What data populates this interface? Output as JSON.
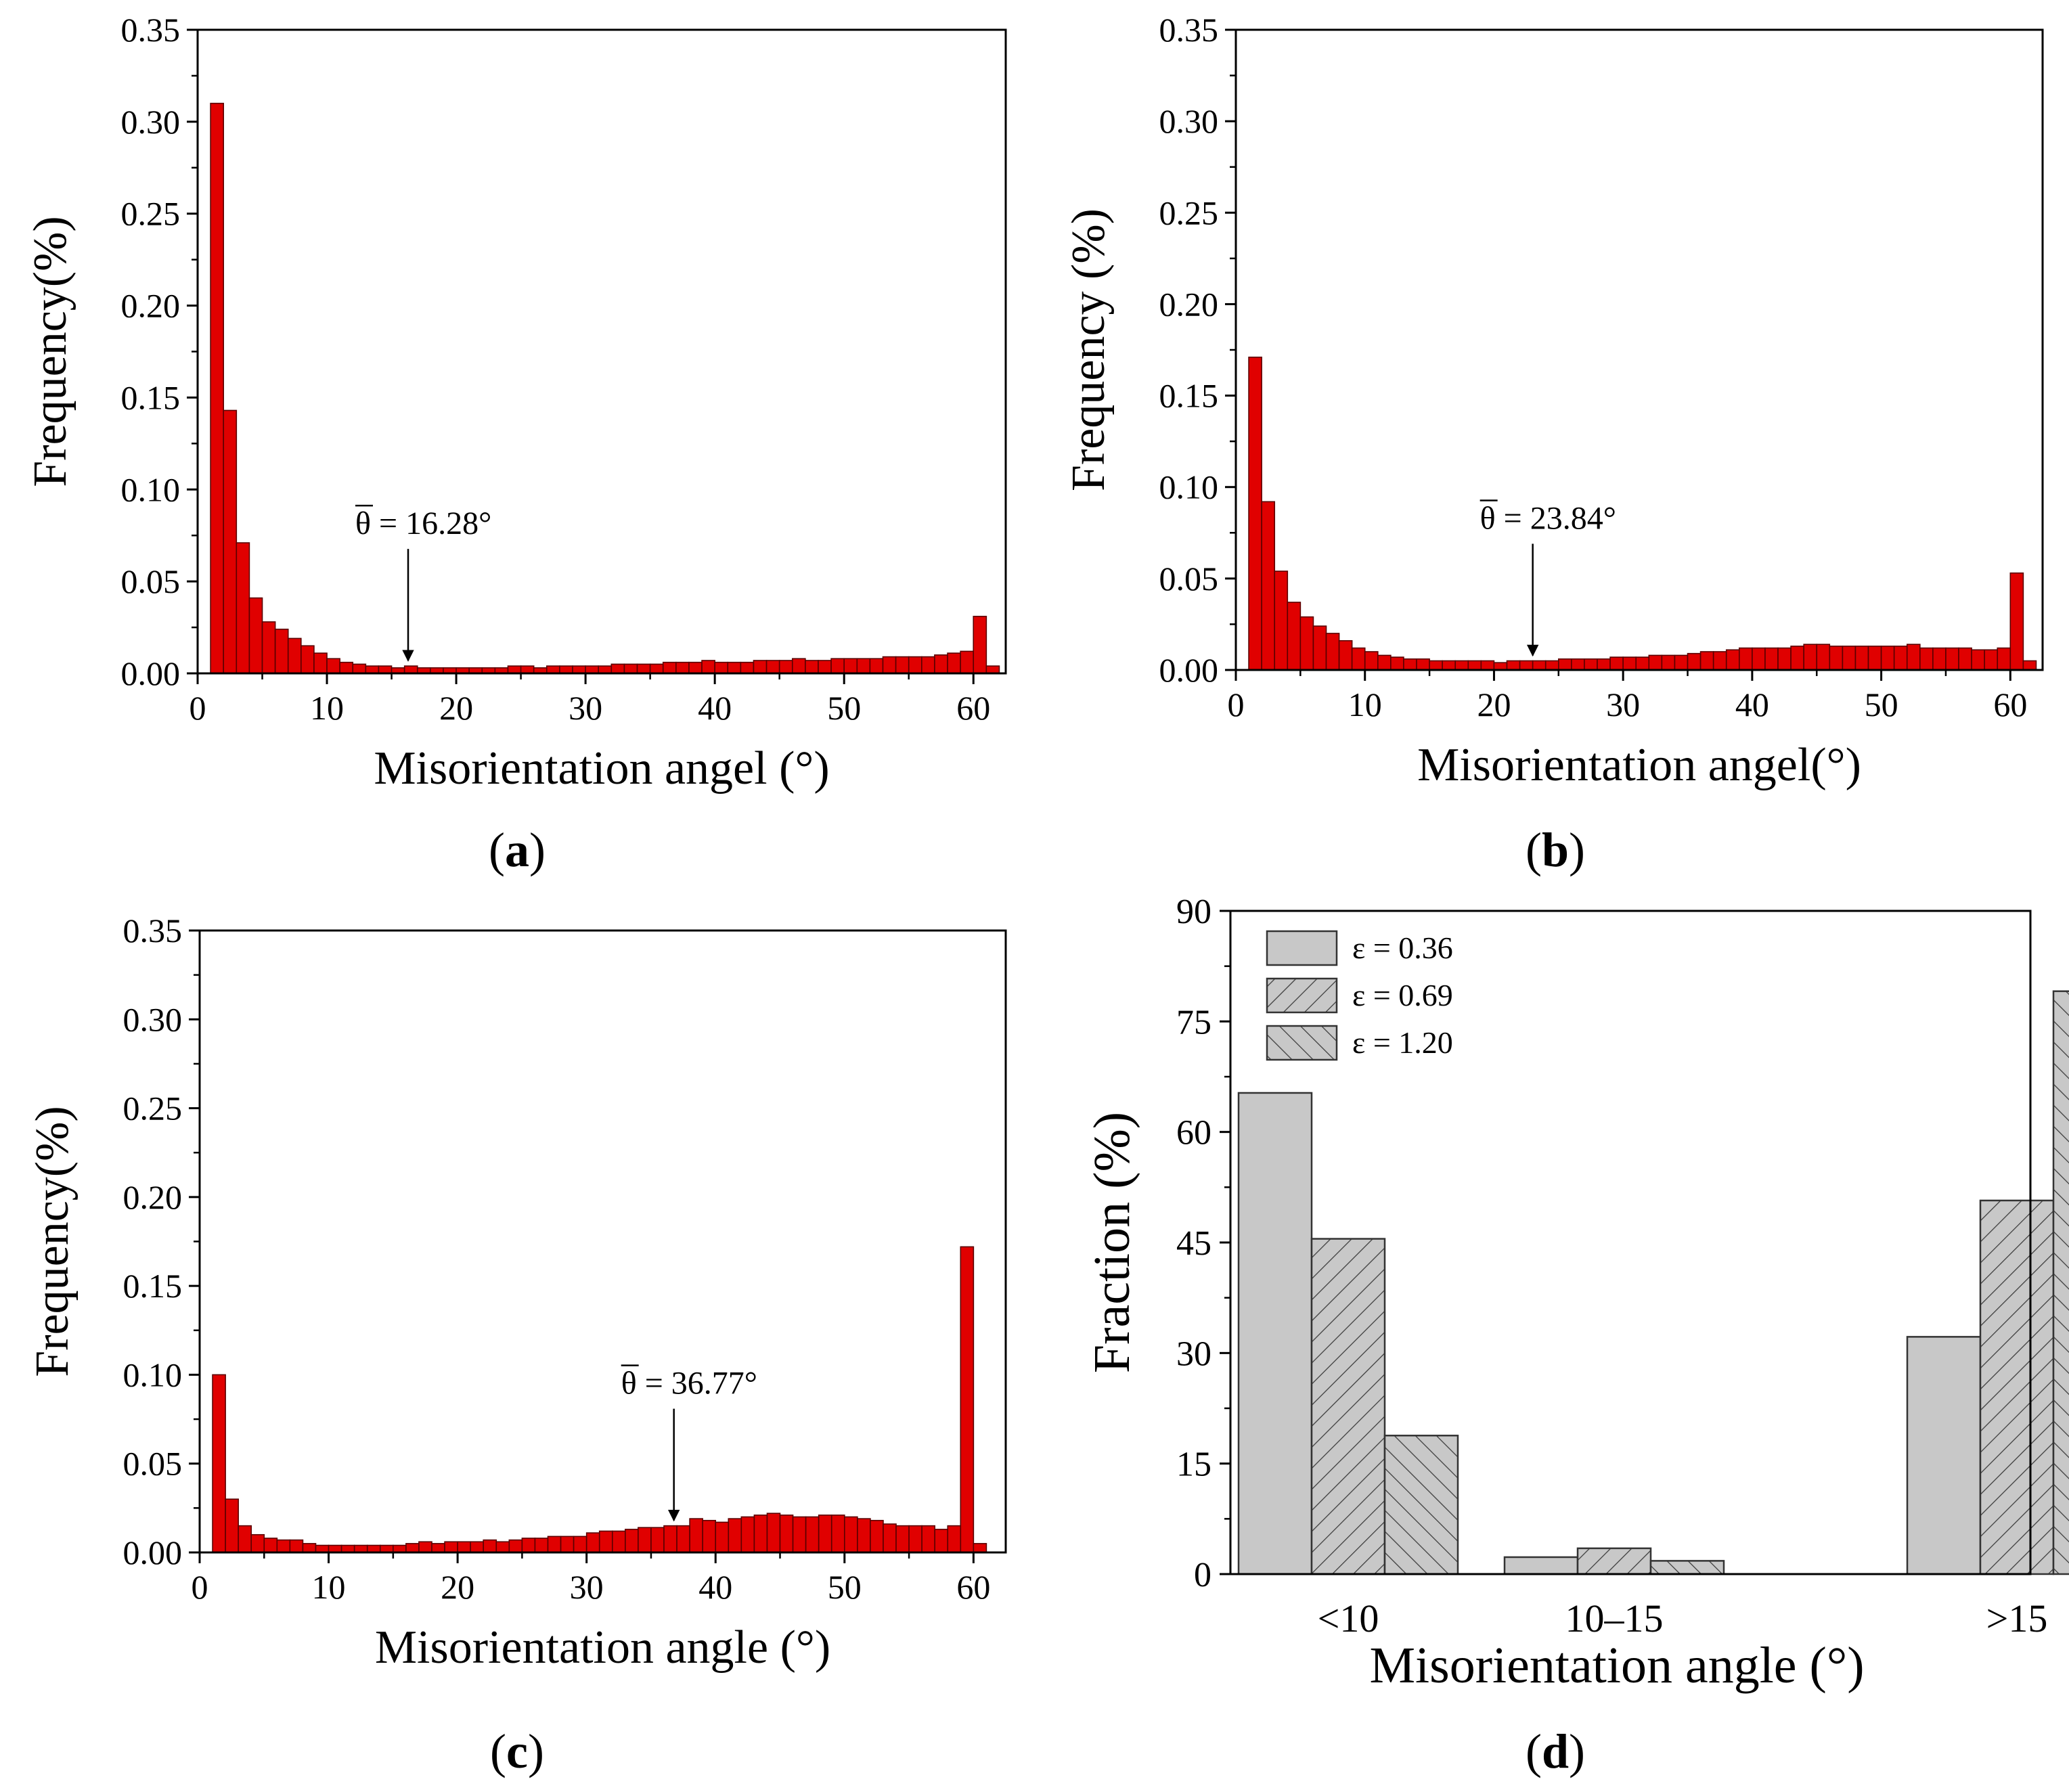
{
  "colors": {
    "bar_red": "#e00000",
    "bar_gray": "#c8c8c8",
    "axis": "#000000"
  },
  "chart_data": [
    {
      "panel": "a",
      "type": "bar",
      "panel_label": "(a)",
      "panel_label_parts": [
        "(",
        "a",
        ")"
      ],
      "xlabel": "Misorientation angel (°)",
      "ylabel": "Frequency(%)",
      "xlim": [
        0,
        62.5
      ],
      "ylim": [
        0,
        0.35
      ],
      "xticks": [
        0,
        10,
        20,
        30,
        40,
        50,
        60
      ],
      "yticks": [
        0.0,
        0.05,
        0.1,
        0.15,
        0.2,
        0.25,
        0.3,
        0.35
      ],
      "bin_width": 1,
      "x": [
        1,
        2,
        3,
        4,
        5,
        6,
        7,
        8,
        9,
        10,
        11,
        12,
        13,
        14,
        15,
        16,
        17,
        18,
        19,
        20,
        21,
        22,
        23,
        24,
        25,
        26,
        27,
        28,
        29,
        30,
        31,
        32,
        33,
        34,
        35,
        36,
        37,
        38,
        39,
        40,
        41,
        42,
        43,
        44,
        45,
        46,
        47,
        48,
        49,
        50,
        51,
        52,
        53,
        54,
        55,
        56,
        57,
        58,
        59,
        60
      ],
      "values": [
        0.31,
        0.143,
        0.071,
        0.041,
        0.028,
        0.024,
        0.019,
        0.015,
        0.011,
        0.008,
        0.006,
        0.005,
        0.004,
        0.004,
        0.003,
        0.004,
        0.003,
        0.003,
        0.003,
        0.003,
        0.003,
        0.003,
        0.003,
        0.004,
        0.004,
        0.003,
        0.004,
        0.004,
        0.004,
        0.004,
        0.004,
        0.005,
        0.005,
        0.005,
        0.005,
        0.006,
        0.006,
        0.006,
        0.007,
        0.006,
        0.006,
        0.006,
        0.007,
        0.007,
        0.007,
        0.008,
        0.007,
        0.007,
        0.008,
        0.008,
        0.008,
        0.008,
        0.009,
        0.009,
        0.009,
        0.009,
        0.01,
        0.011,
        0.012,
        0.031
      ],
      "tail_value": 0.004,
      "annotation": {
        "text": "θ = 16.28°",
        "symbol": "θ",
        "rest": " = 16.28°",
        "x": 16.28
      }
    },
    {
      "panel": "b",
      "type": "bar",
      "panel_label": "(b)",
      "panel_label_parts": [
        "(",
        "b",
        ")"
      ],
      "xlabel": "Misorientation angel(°)",
      "ylabel": "Frequency (%)",
      "xlim": [
        0,
        62.5
      ],
      "ylim": [
        0,
        0.35
      ],
      "xticks": [
        0,
        10,
        20,
        30,
        40,
        50,
        60
      ],
      "yticks": [
        0.0,
        0.05,
        0.1,
        0.15,
        0.2,
        0.25,
        0.3,
        0.35
      ],
      "bin_width": 1,
      "x": [
        1,
        2,
        3,
        4,
        5,
        6,
        7,
        8,
        9,
        10,
        11,
        12,
        13,
        14,
        15,
        16,
        17,
        18,
        19,
        20,
        21,
        22,
        23,
        24,
        25,
        26,
        27,
        28,
        29,
        30,
        31,
        32,
        33,
        34,
        35,
        36,
        37,
        38,
        39,
        40,
        41,
        42,
        43,
        44,
        45,
        46,
        47,
        48,
        49,
        50,
        51,
        52,
        53,
        54,
        55,
        56,
        57,
        58,
        59,
        60
      ],
      "values": [
        0.171,
        0.092,
        0.054,
        0.037,
        0.029,
        0.024,
        0.02,
        0.016,
        0.012,
        0.01,
        0.008,
        0.007,
        0.006,
        0.006,
        0.005,
        0.005,
        0.005,
        0.005,
        0.005,
        0.004,
        0.005,
        0.005,
        0.005,
        0.005,
        0.006,
        0.006,
        0.006,
        0.006,
        0.007,
        0.007,
        0.007,
        0.008,
        0.008,
        0.008,
        0.009,
        0.01,
        0.01,
        0.011,
        0.012,
        0.012,
        0.012,
        0.012,
        0.013,
        0.014,
        0.014,
        0.013,
        0.013,
        0.013,
        0.013,
        0.013,
        0.013,
        0.014,
        0.012,
        0.012,
        0.012,
        0.012,
        0.011,
        0.011,
        0.012,
        0.053
      ],
      "tail_value": 0.005,
      "annotation": {
        "text": "θ = 23.84°",
        "symbol": "θ",
        "rest": " = 23.84°",
        "x": 23.0
      }
    },
    {
      "panel": "c",
      "type": "bar",
      "panel_label": "(c)",
      "panel_label_parts": [
        "(",
        "c",
        ")"
      ],
      "xlabel": "Misorientation angle (°)",
      "ylabel": "Frequency(%)",
      "xlim": [
        0,
        62.5
      ],
      "ylim": [
        0,
        0.35
      ],
      "xticks": [
        0,
        10,
        20,
        30,
        40,
        50,
        60
      ],
      "yticks": [
        0.0,
        0.05,
        0.1,
        0.15,
        0.2,
        0.25,
        0.3,
        0.35
      ],
      "bin_width": 1,
      "x": [
        1,
        2,
        3,
        4,
        5,
        6,
        7,
        8,
        9,
        10,
        11,
        12,
        13,
        14,
        15,
        16,
        17,
        18,
        19,
        20,
        21,
        22,
        23,
        24,
        25,
        26,
        27,
        28,
        29,
        30,
        31,
        32,
        33,
        34,
        35,
        36,
        37,
        38,
        39,
        40,
        41,
        42,
        43,
        44,
        45,
        46,
        47,
        48,
        49,
        50,
        51,
        52,
        53,
        54,
        55,
        56,
        57,
        58,
        59,
        60
      ],
      "values": [
        0.1,
        0.03,
        0.015,
        0.01,
        0.008,
        0.007,
        0.007,
        0.005,
        0.004,
        0.004,
        0.004,
        0.004,
        0.004,
        0.004,
        0.004,
        0.005,
        0.006,
        0.005,
        0.006,
        0.006,
        0.006,
        0.007,
        0.006,
        0.007,
        0.008,
        0.008,
        0.009,
        0.009,
        0.009,
        0.011,
        0.012,
        0.012,
        0.013,
        0.014,
        0.014,
        0.015,
        0.015,
        0.019,
        0.018,
        0.017,
        0.019,
        0.02,
        0.021,
        0.022,
        0.021,
        0.02,
        0.02,
        0.021,
        0.021,
        0.02,
        0.019,
        0.018,
        0.016,
        0.015,
        0.015,
        0.015,
        0.013,
        0.015,
        0.172,
        0.005
      ],
      "tail_value": null,
      "annotation": {
        "text": "θ = 36.77°",
        "symbol": "θ",
        "rest": " = 36.77°",
        "x": 36.77
      }
    },
    {
      "panel": "d",
      "type": "bar",
      "panel_label": "(d)",
      "panel_label_parts": [
        "(",
        "d",
        ")"
      ],
      "xlabel": "Misorientation angle (°)",
      "ylabel": "Fraction (%)",
      "ylim": [
        0,
        90
      ],
      "yticks": [
        0,
        15,
        30,
        45,
        60,
        75,
        90
      ],
      "categories": [
        "<10",
        "10–15",
        ">15"
      ],
      "series": [
        {
          "name": "ε = 0.36",
          "values": [
            65.3,
            2.3,
            32.2
          ],
          "pattern": "solid"
        },
        {
          "name": "ε = 0.69",
          "values": [
            45.5,
            3.5,
            50.7
          ],
          "pattern": "hatch-forward"
        },
        {
          "name": "ε = 1.20",
          "values": [
            18.8,
            1.8,
            79.1
          ],
          "pattern": "hatch-back"
        }
      ],
      "legend_position": "top-left"
    }
  ]
}
